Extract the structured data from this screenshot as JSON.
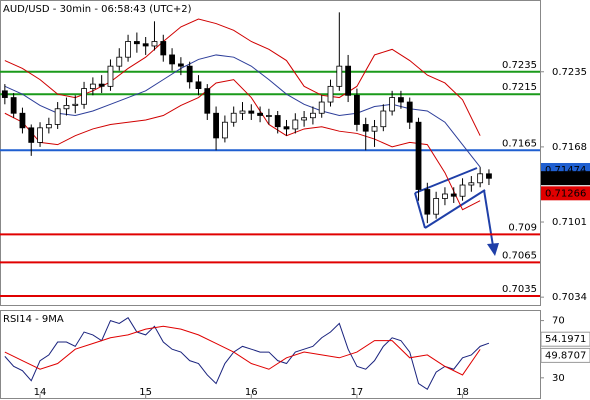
{
  "chart_data": [
    {
      "type": "candlestick",
      "title": "AUD/USD - 30min - 06:58:43 (UTC+2)",
      "x": [
        -4,
        -3,
        -2,
        -1,
        0,
        1,
        2,
        3,
        4,
        5,
        6,
        7,
        8,
        9,
        10,
        11,
        12,
        13,
        14,
        15,
        16,
        17,
        18,
        19,
        20,
        21,
        22,
        23,
        24,
        25,
        26,
        27,
        28,
        29,
        30,
        31,
        32,
        33,
        34,
        35,
        36,
        37,
        38,
        39,
        40,
        41,
        42,
        43,
        44,
        45,
        46,
        47,
        48,
        49,
        50,
        51
      ],
      "candles": [
        [
          0.7218,
          0.7224,
          0.7206,
          0.7212
        ],
        [
          0.7212,
          0.7216,
          0.7194,
          0.7198
        ],
        [
          0.7198,
          0.7203,
          0.718,
          0.7185
        ],
        [
          0.7185,
          0.7188,
          0.716,
          0.7172
        ],
        [
          0.7172,
          0.719,
          0.7168,
          0.7185
        ],
        [
          0.7185,
          0.7194,
          0.718,
          0.7188
        ],
        [
          0.7188,
          0.7208,
          0.7184,
          0.7202
        ],
        [
          0.7202,
          0.7212,
          0.7196,
          0.7205
        ],
        [
          0.7205,
          0.7214,
          0.7198,
          0.7206
        ],
        [
          0.7206,
          0.7226,
          0.7202,
          0.722
        ],
        [
          0.722,
          0.723,
          0.7214,
          0.7224
        ],
        [
          0.7224,
          0.7232,
          0.7216,
          0.7222
        ],
        [
          0.7222,
          0.7246,
          0.7218,
          0.724
        ],
        [
          0.724,
          0.7256,
          0.7236,
          0.7248
        ],
        [
          0.7248,
          0.7268,
          0.7244,
          0.7262
        ],
        [
          0.7262,
          0.727,
          0.7252,
          0.726
        ],
        [
          0.726,
          0.7266,
          0.725,
          0.7258
        ],
        [
          0.7258,
          0.728,
          0.7254,
          0.7262
        ],
        [
          0.7262,
          0.7268,
          0.7244,
          0.725
        ],
        [
          0.725,
          0.7256,
          0.7236,
          0.7242
        ],
        [
          0.7242,
          0.7248,
          0.7232,
          0.724
        ],
        [
          0.724,
          0.7244,
          0.722,
          0.7226
        ],
        [
          0.7226,
          0.7232,
          0.7214,
          0.722
        ],
        [
          0.722,
          0.7224,
          0.7192,
          0.7198
        ],
        [
          0.7198,
          0.7204,
          0.7165,
          0.7176
        ],
        [
          0.7176,
          0.7196,
          0.7172,
          0.719
        ],
        [
          0.719,
          0.7204,
          0.7186,
          0.7198
        ],
        [
          0.7198,
          0.7208,
          0.7192,
          0.72
        ],
        [
          0.72,
          0.7206,
          0.7192,
          0.7198
        ],
        [
          0.7198,
          0.7204,
          0.719,
          0.7196
        ],
        [
          0.7196,
          0.7202,
          0.7188,
          0.7196
        ],
        [
          0.7196,
          0.72,
          0.718,
          0.7186
        ],
        [
          0.7186,
          0.7192,
          0.7178,
          0.7184
        ],
        [
          0.7184,
          0.7198,
          0.718,
          0.7192
        ],
        [
          0.7192,
          0.72,
          0.7186,
          0.7194
        ],
        [
          0.7194,
          0.7204,
          0.7188,
          0.7198
        ],
        [
          0.7198,
          0.7214,
          0.7194,
          0.7208
        ],
        [
          0.7208,
          0.7228,
          0.7204,
          0.7222
        ],
        [
          0.7222,
          0.7288,
          0.7218,
          0.724
        ],
        [
          0.724,
          0.725,
          0.7208,
          0.7214
        ],
        [
          0.7214,
          0.722,
          0.7182,
          0.7188
        ],
        [
          0.7188,
          0.7194,
          0.7165,
          0.7182
        ],
        [
          0.7182,
          0.7192,
          0.7168,
          0.7186
        ],
        [
          0.7186,
          0.7206,
          0.7182,
          0.72
        ],
        [
          0.72,
          0.7218,
          0.7196,
          0.7212
        ],
        [
          0.7212,
          0.7218,
          0.7202,
          0.7208
        ],
        [
          0.7208,
          0.7212,
          0.7184,
          0.719
        ],
        [
          0.719,
          0.7194,
          0.712,
          0.713
        ],
        [
          0.713,
          0.7136,
          0.71,
          0.7108
        ],
        [
          0.7108,
          0.7128,
          0.7104,
          0.7122
        ],
        [
          0.7122,
          0.7132,
          0.7116,
          0.7126
        ],
        [
          0.7126,
          0.7132,
          0.7118,
          0.7124
        ],
        [
          0.7124,
          0.714,
          0.712,
          0.7134
        ],
        [
          0.7134,
          0.7142,
          0.7128,
          0.7136
        ],
        [
          0.7136,
          0.715,
          0.7132,
          0.7144
        ],
        [
          0.7144,
          0.7148,
          0.7134,
          0.714
        ]
      ],
      "overlays": [
        {
          "color": "#2d3e9a",
          "x": [
            -4,
            -2,
            0,
            2,
            4,
            6,
            8,
            10,
            12,
            14,
            16,
            18,
            20,
            22,
            24,
            26,
            28,
            30,
            32,
            34,
            36,
            38,
            40,
            42,
            44,
            46,
            48,
            50
          ],
          "values": [
            0.7222,
            0.7215,
            0.7205,
            0.7198,
            0.7196,
            0.72,
            0.7206,
            0.7212,
            0.7218,
            0.7228,
            0.7238,
            0.7246,
            0.725,
            0.7248,
            0.724,
            0.7228,
            0.7215,
            0.7206,
            0.72,
            0.7196,
            0.7198,
            0.7204,
            0.7206,
            0.7202,
            0.72,
            0.719,
            0.717,
            0.715
          ]
        },
        {
          "color": "#d00000",
          "x": [
            -4,
            -2,
            0,
            2,
            4,
            6,
            8,
            10,
            12,
            14,
            16,
            18,
            20,
            22,
            24,
            26,
            28,
            30,
            32,
            34,
            36,
            38,
            40,
            42,
            44,
            46,
            48,
            50
          ],
          "values": [
            0.7245,
            0.7238,
            0.7228,
            0.7215,
            0.7212,
            0.7218,
            0.7226,
            0.7238,
            0.7248,
            0.7262,
            0.7275,
            0.7282,
            0.7278,
            0.7272,
            0.7262,
            0.7255,
            0.7245,
            0.7222,
            0.7214,
            0.7212,
            0.7222,
            0.725,
            0.7255,
            0.7245,
            0.7232,
            0.7225,
            0.721,
            0.7178
          ]
        },
        {
          "color": "#d00000",
          "x": [
            -4,
            -2,
            0,
            2,
            4,
            6,
            8,
            10,
            12,
            14,
            16,
            18,
            20,
            22,
            24,
            26,
            28,
            30,
            32,
            34,
            36,
            38,
            40,
            42,
            44,
            46,
            48,
            50
          ],
          "values": [
            0.7198,
            0.719,
            0.7172,
            0.717,
            0.7178,
            0.7184,
            0.7188,
            0.719,
            0.7192,
            0.7196,
            0.7205,
            0.7212,
            0.7225,
            0.7228,
            0.7212,
            0.7188,
            0.7178,
            0.7184,
            0.7186,
            0.7182,
            0.718,
            0.7175,
            0.7168,
            0.7172,
            0.717,
            0.7145,
            0.7112,
            0.712
          ]
        }
      ],
      "levels": [
        {
          "value": 0.7235,
          "color": "#1a9a1a"
        },
        {
          "value": 0.7215,
          "color": "#1a9a1a"
        },
        {
          "value": 0.7165,
          "color": "#1f5fd0"
        },
        {
          "value": 0.709,
          "color": "#e00000"
        },
        {
          "value": 0.7065,
          "color": "#e00000"
        },
        {
          "value": 0.7035,
          "color": "#e00000"
        }
      ],
      "price_markers": [
        {
          "value": 0.71474,
          "color": "#1f5fd0"
        },
        {
          "value": 0.71401,
          "color": "#000000"
        },
        {
          "value": 0.71266,
          "color": "#e00000"
        }
      ],
      "xlim": [
        -4.55,
        56.8
      ],
      "ylim": [
        0.7027,
        0.7299
      ],
      "yticks": [
        0.7235,
        0.7168,
        0.7101,
        0.7034
      ]
    },
    {
      "type": "line",
      "title": "RSI14 - 9MA",
      "series": [
        {
          "color": "#1a237e",
          "x": [
            -4,
            -3,
            -2,
            -1,
            0,
            1,
            2,
            3,
            4,
            5,
            6,
            7,
            8,
            9,
            10,
            11,
            12,
            13,
            14,
            15,
            16,
            17,
            18,
            19,
            20,
            21,
            22,
            23,
            24,
            25,
            26,
            27,
            28,
            29,
            30,
            31,
            32,
            33,
            34,
            35,
            36,
            37,
            38,
            39,
            40,
            41,
            42,
            43,
            44,
            45,
            46,
            47,
            48,
            49,
            50,
            51
          ],
          "values": [
            45,
            38,
            35,
            28,
            42,
            46,
            55,
            55,
            52,
            62,
            60,
            56,
            70,
            68,
            72,
            62,
            60,
            66,
            55,
            50,
            48,
            42,
            40,
            32,
            26,
            40,
            48,
            52,
            50,
            48,
            48,
            42,
            40,
            48,
            50,
            52,
            58,
            62,
            68,
            50,
            38,
            36,
            42,
            52,
            58,
            56,
            48,
            26,
            22,
            34,
            38,
            36,
            44,
            46,
            52,
            54.1971
          ]
        },
        {
          "color": "#e00000",
          "x": [
            -4,
            -2,
            0,
            2,
            4,
            6,
            8,
            10,
            12,
            14,
            16,
            18,
            20,
            22,
            24,
            26,
            28,
            30,
            32,
            34,
            36,
            38,
            40,
            42,
            44,
            46,
            48,
            50
          ],
          "values": [
            48,
            42,
            36,
            40,
            50,
            54,
            58,
            60,
            64,
            66,
            64,
            60,
            54,
            48,
            40,
            36,
            44,
            48,
            46,
            44,
            48,
            56,
            56,
            44,
            46,
            38,
            32,
            49.8707
          ]
        }
      ],
      "xlim": [
        -4.55,
        56.8
      ],
      "ylim": [
        15.9,
        77.4
      ],
      "yticks": [
        70,
        30
      ],
      "xticks": [
        {
          "value": 0,
          "label": "14"
        },
        {
          "value": 12,
          "label": "15"
        },
        {
          "value": 24,
          "label": "16"
        },
        {
          "value": 36,
          "label": "17"
        },
        {
          "value": 48,
          "label": "18"
        }
      ]
    }
  ]
}
